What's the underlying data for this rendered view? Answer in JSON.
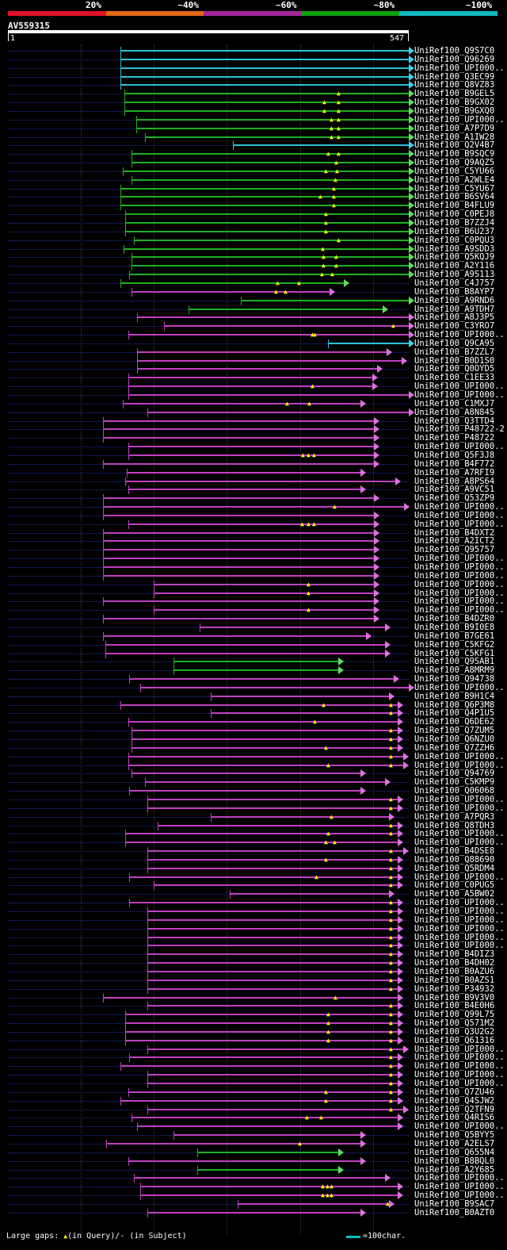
{
  "scale": {
    "labels": [
      "20%",
      "~40%",
      "~60%",
      "~80%",
      "~100%"
    ],
    "colors": [
      "#e0102a",
      "#e06818",
      "#a02898",
      "#10a010",
      "#10b8c0"
    ]
  },
  "query": {
    "id": "AV559315",
    "start": "1",
    "end": "547"
  },
  "colors": {
    "green": "#20b020",
    "magenta": "#c040c0",
    "cyan": "#30c0d8",
    "gap": "#ffff00",
    "arrow_green": "#60e060",
    "arrow_magenta": "#e070e0",
    "arrow_cyan": "#40d0e8"
  },
  "hits": [
    {
      "name": "UniRef100_Q9S7C0",
      "c": "c",
      "s": 152,
      "e": 516
    },
    {
      "name": "UniRef100_Q96269",
      "c": "c",
      "s": 152,
      "e": 516
    },
    {
      "name": "UniRef100_UPI000..",
      "c": "c",
      "s": 152,
      "e": 516
    },
    {
      "name": "UniRef100_Q3EC99",
      "c": "c",
      "s": 152,
      "e": 516
    },
    {
      "name": "UniRef100_Q8VZ83",
      "c": "c",
      "s": 152,
      "e": 516
    },
    {
      "name": "UniRef100_B9GEL5",
      "c": "g",
      "s": 157,
      "e": 516,
      "g": [
        428
      ]
    },
    {
      "name": "UniRef100_B9GX02",
      "c": "g",
      "s": 157,
      "e": 516,
      "g": [
        410,
        428
      ]
    },
    {
      "name": "UniRef100_B9GXQ0",
      "c": "g",
      "s": 157,
      "e": 516,
      "g": [
        410,
        428
      ]
    },
    {
      "name": "UniRef100_UPI000..",
      "c": "g",
      "s": 172,
      "e": 516,
      "g": [
        419,
        428
      ]
    },
    {
      "name": "UniRef100_A7P7D9",
      "c": "g",
      "s": 172,
      "e": 516,
      "g": [
        419,
        428
      ]
    },
    {
      "name": "UniRef100_A1IW28",
      "c": "g",
      "s": 183,
      "e": 516,
      "g": [
        419,
        428
      ]
    },
    {
      "name": "UniRef100_Q2V4B7",
      "c": "c",
      "s": 294,
      "e": 516
    },
    {
      "name": "UniRef100_B9SQC9",
      "c": "g",
      "s": 166,
      "e": 516,
      "g": [
        415,
        428
      ]
    },
    {
      "name": "UniRef100_Q9AQZ5",
      "c": "g",
      "s": 166,
      "e": 516,
      "g": [
        425
      ]
    },
    {
      "name": "UniRef100_C5YU66",
      "c": "g",
      "s": 155,
      "e": 516,
      "g": [
        412,
        426
      ]
    },
    {
      "name": "UniRef100_A2WLE4",
      "c": "g",
      "s": 166,
      "e": 516,
      "g": [
        424
      ]
    },
    {
      "name": "UniRef100_C5YU67",
      "c": "g",
      "s": 152,
      "e": 516,
      "g": [
        422
      ]
    },
    {
      "name": "UniRef100_B6SV64",
      "c": "g",
      "s": 152,
      "e": 516,
      "g": [
        405,
        422
      ]
    },
    {
      "name": "UniRef100_B4FLU9",
      "c": "g",
      "s": 152,
      "e": 516,
      "g": [
        422
      ]
    },
    {
      "name": "UniRef100_C0PEJ8",
      "c": "g",
      "s": 158,
      "e": 516,
      "g": [
        412
      ]
    },
    {
      "name": "UniRef100_B7ZZJ4",
      "c": "g",
      "s": 158,
      "e": 516,
      "g": [
        412
      ]
    },
    {
      "name": "UniRef100_B6U237",
      "c": "g",
      "s": 158,
      "e": 516,
      "g": [
        412
      ]
    },
    {
      "name": "UniRef100_C0PQU3",
      "c": "g",
      "s": 169,
      "e": 516,
      "g": [
        428
      ]
    },
    {
      "name": "UniRef100_A9SDD3",
      "c": "g",
      "s": 156,
      "e": 516,
      "g": [
        408
      ]
    },
    {
      "name": "UniRef100_Q5KQJ9",
      "c": "g",
      "s": 166,
      "e": 516,
      "g": [
        409,
        425
      ]
    },
    {
      "name": "UniRef100_A2Y116",
      "c": "g",
      "s": 166,
      "e": 516,
      "g": [
        409,
        425
      ]
    },
    {
      "name": "UniRef100_A9S113",
      "c": "g",
      "s": 163,
      "e": 516,
      "g": [
        407,
        420
      ]
    },
    {
      "name": "UniRef100_C4J757",
      "c": "g",
      "s": 152,
      "e": 434,
      "g": [
        351,
        378
      ]
    },
    {
      "name": "UniRef100_B8AYP7",
      "c": "m",
      "s": 166,
      "e": 416,
      "g": [
        349,
        361
      ]
    },
    {
      "name": "UniRef100_A9RND6",
      "c": "g",
      "s": 304,
      "e": 516
    },
    {
      "name": "UniRef100_A9TDH7",
      "c": "g",
      "s": 238,
      "e": 483
    },
    {
      "name": "UniRef100_A8J3P5",
      "c": "m",
      "s": 173,
      "e": 516
    },
    {
      "name": "UniRef100_C3YRO7",
      "c": "m",
      "s": 207,
      "e": 516,
      "g": [
        497
      ]
    },
    {
      "name": "UniRef100_UPI000..",
      "c": "m",
      "s": 162,
      "e": 516,
      "g": [
        395,
        398
      ]
    },
    {
      "name": "UniRef100_Q9CA95",
      "c": "c",
      "s": 414,
      "e": 516
    },
    {
      "name": "UniRef100_B7ZZL7",
      "c": "m",
      "s": 173,
      "e": 488
    },
    {
      "name": "UniRef100_B0D1S0",
      "c": "m",
      "s": 173,
      "e": 507
    },
    {
      "name": "UniRef100_Q0OYD5",
      "c": "m",
      "s": 173,
      "e": 476
    },
    {
      "name": "UniRef100_C1EE33",
      "c": "m",
      "s": 162,
      "e": 470
    },
    {
      "name": "UniRef100_UPI000..",
      "c": "m",
      "s": 162,
      "e": 470,
      "g": [
        395
      ]
    },
    {
      "name": "UniRef100_UPI000..",
      "c": "m",
      "s": 162,
      "e": 516
    },
    {
      "name": "UniRef100_C1MXJ7",
      "c": "m",
      "s": 155,
      "e": 455,
      "g": [
        363,
        391
      ]
    },
    {
      "name": "UniRef100_A8N845",
      "c": "m",
      "s": 186,
      "e": 516
    },
    {
      "name": "UniRef100_Q3TTD4",
      "c": "m",
      "s": 130,
      "e": 472
    },
    {
      "name": "UniRef100_P48722-2",
      "c": "m",
      "s": 130,
      "e": 472
    },
    {
      "name": "UniRef100_P48722",
      "c": "m",
      "s": 130,
      "e": 472
    },
    {
      "name": "UniRef100_UPI000..",
      "c": "m",
      "s": 162,
      "e": 472
    },
    {
      "name": "UniRef100_Q5F3J8",
      "c": "m",
      "s": 162,
      "e": 472,
      "g": [
        383,
        390,
        397
      ]
    },
    {
      "name": "UniRef100_B4F772",
      "c": "m",
      "s": 130,
      "e": 472
    },
    {
      "name": "UniRef100_A7RFI9",
      "c": "m",
      "s": 160,
      "e": 455
    },
    {
      "name": "UniRef100_A8PS64",
      "c": "m",
      "s": 158,
      "e": 499
    },
    {
      "name": "UniRef100_A9VC51",
      "c": "m",
      "s": 162,
      "e": 455
    },
    {
      "name": "UniRef100_Q53ZP9",
      "c": "m",
      "s": 130,
      "e": 472
    },
    {
      "name": "UniRef100_UPI000..",
      "c": "m",
      "s": 130,
      "e": 510,
      "g": [
        423
      ]
    },
    {
      "name": "UniRef100_UPI000..",
      "c": "m",
      "s": 130,
      "e": 472
    },
    {
      "name": "UniRef100_UPI000..",
      "c": "m",
      "s": 162,
      "e": 472,
      "g": [
        382,
        390,
        397
      ]
    },
    {
      "name": "UniRef100_B4DXT2",
      "c": "m",
      "s": 130,
      "e": 472
    },
    {
      "name": "UniRef100_A2ICT2",
      "c": "m",
      "s": 130,
      "e": 472
    },
    {
      "name": "UniRef100_Q95757",
      "c": "m",
      "s": 130,
      "e": 472
    },
    {
      "name": "UniRef100_UPI000..",
      "c": "m",
      "s": 130,
      "e": 472
    },
    {
      "name": "UniRef100_UPI000..",
      "c": "m",
      "s": 130,
      "e": 472
    },
    {
      "name": "UniRef100_UPI000..",
      "c": "m",
      "s": 130,
      "e": 472
    },
    {
      "name": "UniRef100_UPI000..",
      "c": "m",
      "s": 194,
      "e": 472,
      "g": [
        390
      ]
    },
    {
      "name": "UniRef100_UPI000..",
      "c": "m",
      "s": 194,
      "e": 472,
      "g": [
        390
      ]
    },
    {
      "name": "UniRef100_UPI000..",
      "c": "m",
      "s": 130,
      "e": 472
    },
    {
      "name": "UniRef100_UPI000..",
      "c": "m",
      "s": 194,
      "e": 472,
      "g": [
        390
      ]
    },
    {
      "name": "UniRef100_B4DZR0",
      "c": "m",
      "s": 130,
      "e": 472
    },
    {
      "name": "UniRef100_B9I0E8",
      "c": "m",
      "s": 252,
      "e": 486
    },
    {
      "name": "UniRef100_B7GE61",
      "c": "m",
      "s": 130,
      "e": 462
    },
    {
      "name": "UniRef100_C5KFG2",
      "c": "m",
      "s": 133,
      "e": 486
    },
    {
      "name": "UniRef100_C5KFG1",
      "c": "m",
      "s": 133,
      "e": 486
    },
    {
      "name": "UniRef100_Q9SAB1",
      "c": "g",
      "s": 219,
      "e": 427
    },
    {
      "name": "UniRef100_A8MRM9",
      "c": "g",
      "s": 219,
      "e": 427
    },
    {
      "name": "UniRef100_Q94738",
      "c": "m",
      "s": 163,
      "e": 497
    },
    {
      "name": "UniRef100_UPI000..",
      "c": "m",
      "s": 177,
      "e": 516
    },
    {
      "name": "UniRef100_B9H1C4",
      "c": "m",
      "s": 266,
      "e": 491
    },
    {
      "name": "UniRef100_Q6P3M8",
      "c": "m",
      "s": 152,
      "e": 502,
      "g": [
        409,
        494
      ]
    },
    {
      "name": "UniRef100_Q4P1U5",
      "c": "m",
      "s": 266,
      "e": 502,
      "g": [
        494
      ]
    },
    {
      "name": "UniRef100_Q6DE62",
      "c": "m",
      "s": 162,
      "e": 502,
      "g": [
        398
      ]
    },
    {
      "name": "UniRef100_Q7ZUM5",
      "c": "m",
      "s": 166,
      "e": 502,
      "g": [
        494
      ]
    },
    {
      "name": "UniRef100_Q6NZU0",
      "c": "m",
      "s": 166,
      "e": 502,
      "g": [
        494
      ]
    },
    {
      "name": "UniRef100_Q7ZZH6",
      "c": "m",
      "s": 166,
      "e": 502,
      "g": [
        412,
        494
      ]
    },
    {
      "name": "UniRef100_UPI000..",
      "c": "m",
      "s": 162,
      "e": 509,
      "g": [
        494
      ]
    },
    {
      "name": "UniRef100_UPI000..",
      "c": "m",
      "s": 162,
      "e": 509,
      "g": [
        415,
        494
      ]
    },
    {
      "name": "UniRef100_Q94769",
      "c": "m",
      "s": 166,
      "e": 455
    },
    {
      "name": "UniRef100_C5KMP9",
      "c": "m",
      "s": 183,
      "e": 486
    },
    {
      "name": "UniRef100_Q06068",
      "c": "m",
      "s": 163,
      "e": 455
    },
    {
      "name": "UniRef100_UPI000..",
      "c": "m",
      "s": 186,
      "e": 502,
      "g": [
        494
      ]
    },
    {
      "name": "UniRef100_UPI000..",
      "c": "m",
      "s": 186,
      "e": 502,
      "g": [
        494
      ]
    },
    {
      "name": "UniRef100_A7PQR3",
      "c": "m",
      "s": 266,
      "e": 491,
      "g": [
        419
      ]
    },
    {
      "name": "UniRef100_Q8TDH3",
      "c": "m",
      "s": 199,
      "e": 502,
      "g": [
        494
      ]
    },
    {
      "name": "UniRef100_UPI000..",
      "c": "m",
      "s": 158,
      "e": 502,
      "g": [
        415,
        494
      ]
    },
    {
      "name": "UniRef100_UPI000..",
      "c": "m",
      "s": 158,
      "e": 502,
      "g": [
        412,
        423
      ]
    },
    {
      "name": "UniRef100_B4DSE8",
      "c": "m",
      "s": 186,
      "e": 509,
      "g": [
        494
      ]
    },
    {
      "name": "UniRef100_Q88690",
      "c": "m",
      "s": 186,
      "e": 502,
      "g": [
        412,
        494
      ]
    },
    {
      "name": "UniRef100_Q5RDM4",
      "c": "m",
      "s": 186,
      "e": 502,
      "g": [
        494
      ]
    },
    {
      "name": "UniRef100_UPI000..",
      "c": "m",
      "s": 163,
      "e": 502,
      "g": [
        400,
        494
      ]
    },
    {
      "name": "UniRef100_C0PUG5",
      "c": "m",
      "s": 194,
      "e": 502,
      "g": [
        494
      ]
    },
    {
      "name": "UniRef100_A5BW02",
      "c": "m",
      "s": 290,
      "e": 491
    },
    {
      "name": "UniRef100_UPI000..",
      "c": "m",
      "s": 163,
      "e": 502,
      "g": [
        494
      ]
    },
    {
      "name": "UniRef100_UPI000..",
      "c": "m",
      "s": 186,
      "e": 502,
      "g": [
        494
      ]
    },
    {
      "name": "UniRef100_UPI000..",
      "c": "m",
      "s": 186,
      "e": 502,
      "g": [
        494
      ]
    },
    {
      "name": "UniRef100_UPI000..",
      "c": "m",
      "s": 186,
      "e": 502,
      "g": [
        494
      ]
    },
    {
      "name": "UniRef100_UPI000..",
      "c": "m",
      "s": 186,
      "e": 502,
      "g": [
        494
      ]
    },
    {
      "name": "UniRef100_UPI000..",
      "c": "m",
      "s": 186,
      "e": 502,
      "g": [
        494
      ]
    },
    {
      "name": "UniRef100_B4DIZ3",
      "c": "m",
      "s": 186,
      "e": 502,
      "g": [
        494
      ]
    },
    {
      "name": "UniRef100_B4DH02",
      "c": "m",
      "s": 186,
      "e": 502,
      "g": [
        494
      ]
    },
    {
      "name": "UniRef100_B0AZU6",
      "c": "m",
      "s": 186,
      "e": 502,
      "g": [
        494
      ]
    },
    {
      "name": "UniRef100_B0AZS1",
      "c": "m",
      "s": 186,
      "e": 502,
      "g": [
        494
      ]
    },
    {
      "name": "UniRef100_P34932",
      "c": "m",
      "s": 186,
      "e": 502,
      "g": [
        494
      ]
    },
    {
      "name": "UniRef100_B9V3V0",
      "c": "m",
      "s": 130,
      "e": 502,
      "g": [
        424
      ]
    },
    {
      "name": "UniRef100_B4E0H6",
      "c": "m",
      "s": 186,
      "e": 502,
      "g": [
        494
      ]
    },
    {
      "name": "UniRef100_Q99L75",
      "c": "m",
      "s": 158,
      "e": 502,
      "g": [
        415,
        494
      ]
    },
    {
      "name": "UniRef100_Q571M2",
      "c": "m",
      "s": 158,
      "e": 502,
      "g": [
        415,
        494
      ]
    },
    {
      "name": "UniRef100_Q3U2G2",
      "c": "m",
      "s": 158,
      "e": 502,
      "g": [
        415,
        494
      ]
    },
    {
      "name": "UniRef100_Q61316",
      "c": "m",
      "s": 158,
      "e": 502,
      "g": [
        415,
        494
      ]
    },
    {
      "name": "UniRef100_UPI000..",
      "c": "m",
      "s": 186,
      "e": 509,
      "g": [
        494
      ]
    },
    {
      "name": "UniRef100_UPI000..",
      "c": "m",
      "s": 163,
      "e": 502,
      "g": [
        494
      ]
    },
    {
      "name": "UniRef100_UPI000..",
      "c": "m",
      "s": 152,
      "e": 502,
      "g": [
        494
      ]
    },
    {
      "name": "UniRef100_UPI000..",
      "c": "m",
      "s": 186,
      "e": 502,
      "g": [
        494
      ]
    },
    {
      "name": "UniRef100_UPI000..",
      "c": "m",
      "s": 186,
      "e": 502,
      "g": [
        494
      ]
    },
    {
      "name": "UniRef100_Q7ZU46",
      "c": "m",
      "s": 162,
      "e": 502,
      "g": [
        412,
        494
      ]
    },
    {
      "name": "UniRef100_Q4SJW2",
      "c": "m",
      "s": 152,
      "e": 502,
      "g": [
        412,
        494
      ]
    },
    {
      "name": "UniRef100_Q2TFN9",
      "c": "m",
      "s": 186,
      "e": 509,
      "g": [
        494
      ]
    },
    {
      "name": "UniRef100_Q4RIS6",
      "c": "m",
      "s": 166,
      "e": 502,
      "g": [
        388,
        406
      ]
    },
    {
      "name": "UniRef100_UPI000..",
      "c": "m",
      "s": 173,
      "e": 502
    },
    {
      "name": "UniRef100_Q5BYY5",
      "c": "m",
      "s": 219,
      "e": 455
    },
    {
      "name": "UniRef100_A2ELS7",
      "c": "m",
      "s": 134,
      "e": 455,
      "g": [
        379
      ]
    },
    {
      "name": "UniRef100_Q655N4",
      "c": "g",
      "s": 249,
      "e": 427
    },
    {
      "name": "UniRef100_B8BQL0",
      "c": "m",
      "s": 162,
      "e": 455
    },
    {
      "name": "UniRef100_A2Y685",
      "c": "g",
      "s": 249,
      "e": 427
    },
    {
      "name": "UniRef100_UPI000..",
      "c": "m",
      "s": 169,
      "e": 486
    },
    {
      "name": "UniRef100_UPI000..",
      "c": "m",
      "s": 177,
      "e": 502,
      "g": [
        408,
        414,
        419
      ]
    },
    {
      "name": "UniRef100_UPI000..",
      "c": "m",
      "s": 177,
      "e": 502,
      "g": [
        408,
        414,
        419
      ]
    },
    {
      "name": "UniRef100_B9SAC7",
      "c": "m",
      "s": 300,
      "e": 491,
      "g": [
        490
      ]
    },
    {
      "name": "UniRef100_B0AZT0",
      "c": "m",
      "s": 186,
      "e": 455
    }
  ],
  "footer": {
    "label": "Large gaps:",
    "query_gap": "(in Query)/- (in Subject)",
    "legend": "=100char."
  }
}
